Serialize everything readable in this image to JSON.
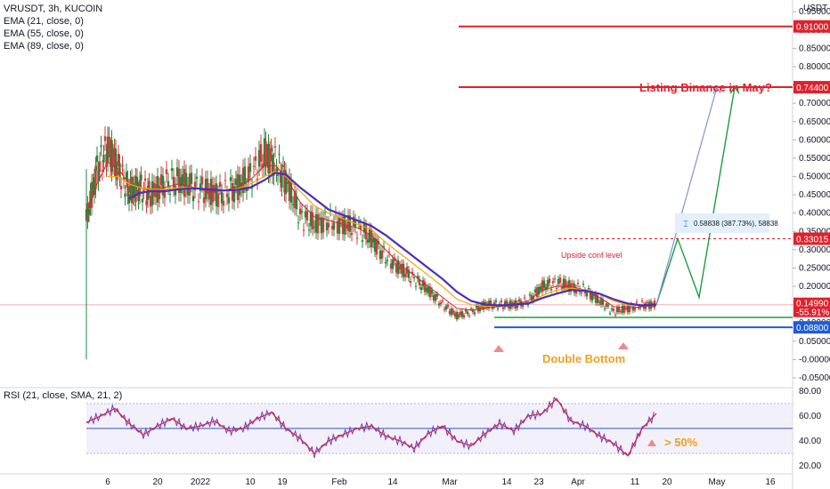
{
  "header": {
    "symbol": "VRUSDT, 3h, KUCOIN",
    "indicators": [
      "EMA (21, close, 0)",
      "EMA (55, close, 0)",
      "EMA (89, close, 0)"
    ],
    "rsi_label": "RSI (21, close, SMA, 21, 2)"
  },
  "price_axis": {
    "currency": "USDT",
    "ticks": [
      "0.95000",
      "0.90000",
      "0.85000",
      "0.80000",
      "0.75000",
      "0.70000",
      "0.65000",
      "0.60000",
      "0.55000",
      "0.50000",
      "0.45000",
      "0.40000",
      "0.35000",
      "0.30000",
      "0.25000",
      "0.20000",
      "0.15000",
      "0.10000",
      "0.05000",
      "-0.00000",
      "-0.05000"
    ],
    "tick_values": [
      0.95,
      0.9,
      0.85,
      0.8,
      0.75,
      0.7,
      0.65,
      0.6,
      0.55,
      0.5,
      0.45,
      0.4,
      0.35,
      0.3,
      0.25,
      0.2,
      0.15,
      0.1,
      0.05,
      0.0,
      -0.05
    ]
  },
  "rsi_axis": {
    "ticks": [
      "80.00",
      "60.00",
      "40.00",
      "20.00"
    ],
    "tick_values": [
      80,
      60,
      40,
      20
    ]
  },
  "time_axis": {
    "labels": [
      "6",
      "20",
      "2022",
      "10",
      "19",
      "Feb",
      "14",
      "Mar",
      "14",
      "23",
      "Apr",
      "11",
      "20",
      "May",
      "16"
    ],
    "positions": [
      0.6,
      2.0,
      3.2,
      4.6,
      5.5,
      7.1,
      8.6,
      10.2,
      11.8,
      12.7,
      13.8,
      15.4,
      16.3,
      17.7,
      19.2
    ]
  },
  "levels": {
    "upper_resistance": {
      "value": 0.91,
      "label": "0.91000",
      "color": "#e0212c"
    },
    "target": {
      "value": 0.744,
      "label": "0.74400",
      "color": "#e0212c"
    },
    "upside_conf": {
      "value": 0.33015,
      "label": "0.33015",
      "text": "Upside conf level",
      "color": "#e0212c"
    },
    "double_bottom_support": {
      "value": 0.088,
      "label": "0.08800",
      "color": "#1e5bd8"
    },
    "green_support": {
      "value": 0.115,
      "color": "#1b9e3f"
    },
    "current_price": {
      "value": 0.1499,
      "label": "0.14990",
      "change": "-55.91%",
      "color": "#e0212c"
    }
  },
  "annotations": {
    "listing": {
      "text": "Listing Binance in May?",
      "color": "#e0212c"
    },
    "double_bottom": {
      "text": "Double Bottom",
      "color": "#f0a020"
    },
    "measure": {
      "text": "0.58838 (387.73%), 58838"
    },
    "rsi_note": {
      "text": "> 50%",
      "color": "#f0a020"
    }
  },
  "colors": {
    "ema21": "#e0212c",
    "ema55": "#f2a900",
    "ema89": "#4a2fb8",
    "candle_up": "#1b8a3e",
    "candle_down": "#d63a3a",
    "rsi_line": "#6a3fc8",
    "rsi_sma": "#e0212c",
    "rsi_band": "#e9e6f7",
    "projection_green": "#1b9e3f",
    "projection_blue": "#7f93d8"
  },
  "chart_data": {
    "type": "line",
    "title": "VRUSDT, 3h, KUCOIN",
    "x_unit": "time index (weeks from chart start)",
    "price_path": {
      "x": [
        0.0,
        0.3,
        0.6,
        0.9,
        1.2,
        1.5,
        1.8,
        2.2,
        2.6,
        3.0,
        3.4,
        3.8,
        4.2,
        4.6,
        5.0,
        5.3,
        5.6,
        6.0,
        6.4,
        6.8,
        7.2,
        7.6,
        8.0,
        8.4,
        8.8,
        9.2,
        9.6,
        10.0,
        10.4,
        10.8,
        11.2,
        11.6,
        12.0,
        12.4,
        12.8,
        13.2,
        13.6,
        14.0,
        14.4,
        14.8,
        15.2,
        15.6,
        16.0
      ],
      "y": [
        0.38,
        0.52,
        0.58,
        0.52,
        0.46,
        0.47,
        0.45,
        0.48,
        0.49,
        0.47,
        0.46,
        0.45,
        0.47,
        0.5,
        0.56,
        0.54,
        0.49,
        0.39,
        0.37,
        0.38,
        0.37,
        0.36,
        0.33,
        0.28,
        0.25,
        0.22,
        0.19,
        0.15,
        0.12,
        0.13,
        0.15,
        0.15,
        0.15,
        0.16,
        0.2,
        0.21,
        0.2,
        0.19,
        0.16,
        0.13,
        0.14,
        0.15,
        0.15
      ]
    },
    "ema21": [
      0.4,
      0.48,
      0.54,
      0.52,
      0.48,
      0.47,
      0.46,
      0.47,
      0.48,
      0.47,
      0.46,
      0.46,
      0.47,
      0.49,
      0.53,
      0.53,
      0.5,
      0.43,
      0.39,
      0.38,
      0.37,
      0.36,
      0.34,
      0.3,
      0.26,
      0.23,
      0.2,
      0.17,
      0.14,
      0.135,
      0.14,
      0.145,
      0.15,
      0.16,
      0.19,
      0.2,
      0.2,
      0.19,
      0.17,
      0.145,
      0.14,
      0.145,
      0.148
    ],
    "ema55": [
      null,
      null,
      0.5,
      0.5,
      0.48,
      0.47,
      0.465,
      0.465,
      0.47,
      0.47,
      0.465,
      0.46,
      0.465,
      0.48,
      0.5,
      0.515,
      0.5,
      0.46,
      0.42,
      0.4,
      0.385,
      0.37,
      0.355,
      0.32,
      0.29,
      0.26,
      0.23,
      0.2,
      0.165,
      0.15,
      0.145,
      0.147,
      0.15,
      0.155,
      0.175,
      0.19,
      0.195,
      0.19,
      0.18,
      0.16,
      0.15,
      0.148,
      0.15
    ],
    "ema89": [
      null,
      null,
      null,
      null,
      0.44,
      0.455,
      0.46,
      0.46,
      0.465,
      0.468,
      0.465,
      0.462,
      0.463,
      0.47,
      0.49,
      0.51,
      0.505,
      0.47,
      0.44,
      0.41,
      0.395,
      0.38,
      0.365,
      0.34,
      0.31,
      0.28,
      0.25,
      0.22,
      0.185,
      0.16,
      0.15,
      0.148,
      0.15,
      0.153,
      0.168,
      0.18,
      0.19,
      0.188,
      0.18,
      0.165,
      0.153,
      0.148,
      0.15
    ],
    "rsi": {
      "x": [
        0.0,
        0.4,
        0.8,
        1.2,
        1.6,
        2.0,
        2.4,
        2.8,
        3.2,
        3.6,
        4.0,
        4.4,
        4.8,
        5.2,
        5.6,
        6.0,
        6.4,
        6.8,
        7.2,
        7.6,
        8.0,
        8.4,
        8.8,
        9.2,
        9.6,
        10.0,
        10.4,
        10.8,
        11.2,
        11.6,
        12.0,
        12.4,
        12.8,
        13.2,
        13.6,
        14.0,
        14.4,
        14.8,
        15.2,
        15.6,
        16.0
      ],
      "y": [
        55,
        60,
        66,
        54,
        45,
        52,
        58,
        50,
        52,
        56,
        48,
        50,
        58,
        63,
        50,
        42,
        30,
        40,
        45,
        50,
        52,
        44,
        40,
        34,
        46,
        52,
        40,
        36,
        46,
        54,
        48,
        60,
        62,
        74,
        56,
        52,
        44,
        38,
        28,
        50,
        62
      ]
    },
    "projection": {
      "green_x": [
        16.0,
        16.6,
        17.2,
        18.2
      ],
      "green_y": [
        0.15,
        0.33,
        0.17,
        0.744
      ],
      "blue_x": [
        16.0,
        17.7
      ],
      "blue_y": [
        0.15,
        0.744
      ]
    },
    "ylim": [
      -0.05,
      0.97
    ],
    "rsi_ylim": [
      15,
      82
    ],
    "grid": false
  }
}
